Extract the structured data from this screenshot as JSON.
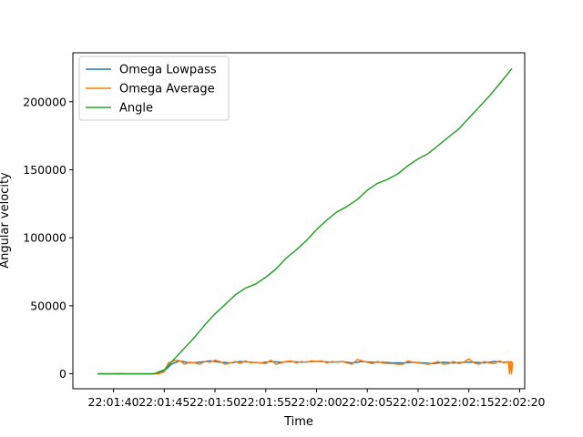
{
  "chart_data": {
    "type": "line",
    "title": "",
    "xlabel": "Time",
    "ylabel": "Angular velocity",
    "x_ticks": [
      "22:01:40",
      "22:01:45",
      "22:01:50",
      "22:01:55",
      "22:02:00",
      "22:02:05",
      "22:02:10",
      "22:02:15",
      "22:02:20"
    ],
    "y_ticks": [
      "0",
      "50000",
      "100000",
      "150000",
      "200000"
    ],
    "xlim": [
      "22:01:36",
      "22:02:20.5"
    ],
    "ylim": [
      -11000,
      236000
    ],
    "legend": {
      "placement": "top-left"
    },
    "series": [
      {
        "name": "Omega Lowpass",
        "color": "#1f77b4",
        "x": [
          "22:01:38.5",
          "22:01:40",
          "22:01:42",
          "22:01:44",
          "22:01:45",
          "22:01:45.7",
          "22:01:46.5",
          "22:01:47.5",
          "22:01:48.5",
          "22:01:49.5",
          "22:01:50.5",
          "22:01:51.5",
          "22:01:52.5",
          "22:01:53.5",
          "22:01:54.5",
          "22:01:55.5",
          "22:01:56.5",
          "22:01:57.5",
          "22:01:58.5",
          "22:01:59.5",
          "22:02:00.5",
          "22:02:01.5",
          "22:02:02.5",
          "22:02:03.5",
          "22:02:04.5",
          "22:02:05.5",
          "22:02:06.5",
          "22:02:07.5",
          "22:02:08.5",
          "22:02:09.5",
          "22:02:10.5",
          "22:02:11.5",
          "22:02:12.5",
          "22:02:13.5",
          "22:02:14.5",
          "22:02:15.5",
          "22:02:16.5",
          "22:02:17.5",
          "22:02:18.5",
          "22:02:19.2"
        ],
        "values": [
          0,
          0,
          0,
          0,
          2000,
          7000,
          9500,
          8000,
          8500,
          9500,
          8500,
          8000,
          9000,
          8500,
          8000,
          9000,
          8500,
          9000,
          8500,
          9000,
          9000,
          8500,
          9000,
          8000,
          9000,
          8500,
          8500,
          8000,
          8000,
          8500,
          8000,
          7500,
          8500,
          8000,
          8500,
          8500,
          8000,
          9000,
          8500,
          8500
        ]
      },
      {
        "name": "Omega Average",
        "color": "#ff7f0e",
        "x": [
          "22:01:38.5",
          "22:01:39.5",
          "22:01:40.5",
          "22:01:41.5",
          "22:01:42.5",
          "22:01:43.5",
          "22:01:44.5",
          "22:01:45",
          "22:01:45.4",
          "22:01:45.8",
          "22:01:46.2",
          "22:01:46.6",
          "22:01:47",
          "22:01:47.5",
          "22:01:48",
          "22:01:48.5",
          "22:01:49",
          "22:01:49.5",
          "22:01:50",
          "22:01:50.5",
          "22:01:51",
          "22:01:51.5",
          "22:01:52",
          "22:01:52.5",
          "22:01:53",
          "22:01:53.5",
          "22:01:54",
          "22:01:54.5",
          "22:01:55",
          "22:01:55.5",
          "22:01:56",
          "22:01:56.5",
          "22:01:57",
          "22:01:57.5",
          "22:01:58",
          "22:01:58.5",
          "22:01:59",
          "22:01:59.5",
          "22:02:00",
          "22:02:00.5",
          "22:02:01",
          "22:02:01.5",
          "22:02:02",
          "22:02:02.5",
          "22:02:03",
          "22:02:03.5",
          "22:02:04",
          "22:02:04.5",
          "22:02:05",
          "22:02:05.5",
          "22:02:06",
          "22:02:06.5",
          "22:02:07",
          "22:02:07.5",
          "22:02:08",
          "22:02:08.5",
          "22:02:09",
          "22:02:09.5",
          "22:02:10",
          "22:02:10.5",
          "22:02:11",
          "22:02:11.5",
          "22:02:12",
          "22:02:12.5",
          "22:02:13",
          "22:02:13.5",
          "22:02:14",
          "22:02:14.5",
          "22:02:15",
          "22:02:15.5",
          "22:02:16",
          "22:02:16.5",
          "22:02:17",
          "22:02:17.5",
          "22:02:18",
          "22:02:18.5",
          "22:02:18.9",
          "22:02:19.0",
          "22:02:19.1",
          "22:02:19.2",
          "22:02:19.3"
        ],
        "values": [
          0,
          0,
          200,
          0,
          0,
          0,
          0,
          1500,
          8000,
          9000,
          10000,
          9500,
          7000,
          8500,
          8000,
          7000,
          9000,
          8500,
          10000,
          9000,
          7000,
          8000,
          9000,
          7500,
          9500,
          8000,
          8500,
          8000,
          7500,
          10000,
          7000,
          8000,
          9000,
          9500,
          8000,
          9000,
          8500,
          9500,
          9000,
          9500,
          8000,
          9000,
          8500,
          9000,
          8000,
          7000,
          10500,
          9500,
          8500,
          7500,
          9000,
          8000,
          7500,
          7500,
          7000,
          7000,
          9500,
          8500,
          8000,
          7500,
          7000,
          8000,
          9000,
          7000,
          7500,
          9000,
          7500,
          8500,
          11000,
          8000,
          7000,
          9000,
          8000,
          7500,
          9500,
          8000,
          9000,
          0,
          9000,
          0,
          8000
        ]
      },
      {
        "name": "Angle",
        "color": "#2ca02c",
        "x": [
          "22:01:38.5",
          "22:01:40",
          "22:01:42",
          "22:01:44",
          "22:01:45",
          "22:01:46",
          "22:01:47",
          "22:01:48",
          "22:01:49",
          "22:01:50",
          "22:01:51",
          "22:01:52",
          "22:01:53",
          "22:01:54",
          "22:01:55",
          "22:01:56",
          "22:01:57",
          "22:01:58",
          "22:01:59",
          "22:02:00",
          "22:02:01",
          "22:02:02",
          "22:02:03",
          "22:02:04",
          "22:02:05",
          "22:02:06",
          "22:02:07",
          "22:02:08",
          "22:02:09",
          "22:02:10",
          "22:02:11",
          "22:02:12",
          "22:02:13",
          "22:02:14",
          "22:02:15",
          "22:02:16",
          "22:02:17",
          "22:02:18",
          "22:02:19.2"
        ],
        "values": [
          0,
          0,
          0,
          0,
          3000,
          11000,
          19000,
          27000,
          36000,
          44000,
          51000,
          58000,
          63000,
          66000,
          71000,
          77000,
          85000,
          91000,
          98000,
          106000,
          113000,
          119000,
          123000,
          128000,
          135000,
          140000,
          143000,
          147000,
          153000,
          158000,
          162000,
          168000,
          174000,
          180000,
          188000,
          196000,
          204000,
          213000,
          224000
        ]
      }
    ]
  }
}
